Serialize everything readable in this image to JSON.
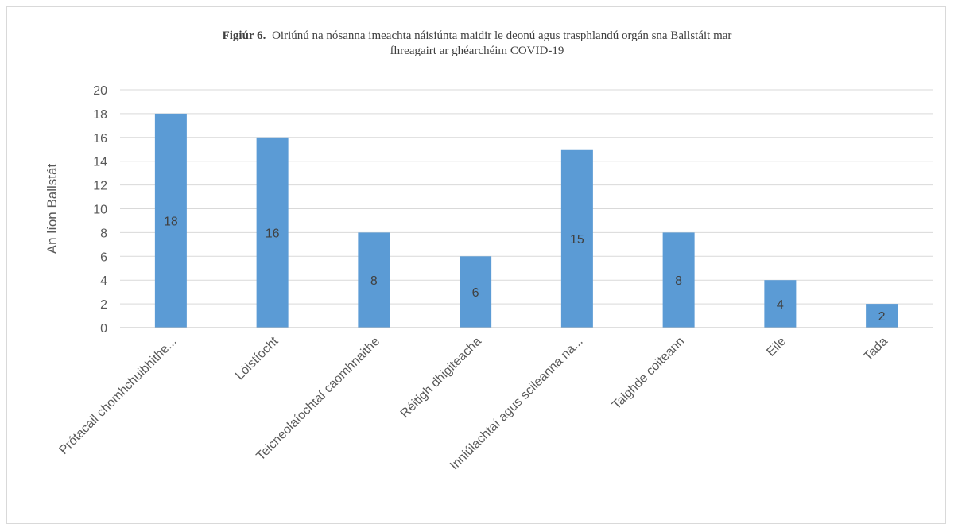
{
  "chart_data": {
    "type": "bar",
    "title_prefix": "Figiúr 6.",
    "title_line1": "Oiriúnú na nósanna imeachta náisiúnta maidir le deonú agus trasphlandú orgán sna Ballstáit mar",
    "title_line2": "fhreagairt ar ghéarchéim COVID-19",
    "ylabel": "An líon Ballstát",
    "xlabel": "",
    "ylim": [
      0,
      20
    ],
    "yticks": [
      0,
      2,
      4,
      6,
      8,
      10,
      12,
      14,
      16,
      18,
      20
    ],
    "categories": [
      "Prótacail chomhchuibhithe...",
      "Lóistíocht",
      "Teicneolaíochtaí caomhnaithe",
      "Réitigh dhigiteacha",
      "Inniúlachtaí agus scileanna na...",
      "Taighde coiteann",
      "Eile",
      "Tada"
    ],
    "values": [
      18,
      16,
      8,
      6,
      15,
      8,
      4,
      2
    ],
    "bar_color": "#5b9bd5",
    "grid": true,
    "legend": "none"
  }
}
